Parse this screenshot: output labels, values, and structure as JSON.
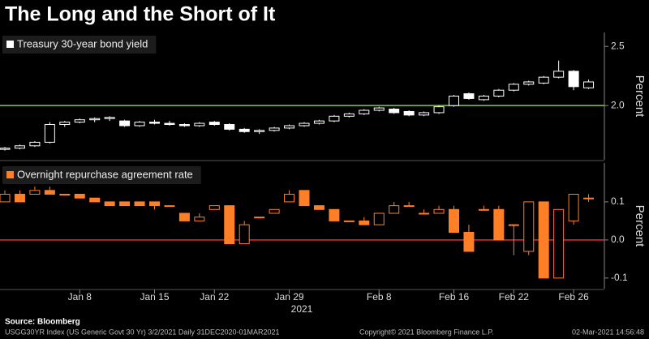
{
  "title": "The Long and the Short of It",
  "source": "Source: Bloomberg",
  "footer_left": "USGG30YR Index (US Generic Govt 30 Yr) 3/2/2021  Daily 31DEC2020-01MAR2021",
  "footer_center": "Copyright© 2021 Bloomberg Finance L.P.",
  "footer_right": "02-Mar-2021 14:56:48",
  "chart_data": [
    {
      "type": "candlestick",
      "legend": "Treasury 30-year bond yield",
      "color": "#ffffff",
      "ylabel": "Percent",
      "ylim": [
        1.542,
        2.618
      ],
      "yticks": [
        {
          "value": 2,
          "label": "2.0"
        },
        2.5
      ],
      "reference_line": 2,
      "reference_color": "#8cc63f",
      "open": [
        1.63,
        1.64,
        1.66,
        1.69,
        1.84,
        1.86,
        1.88,
        1.89,
        1.87,
        1.83,
        1.86,
        1.85,
        1.84,
        1.83,
        1.86,
        1.84,
        1.8,
        1.78,
        1.79,
        1.81,
        1.83,
        1.85,
        1.87,
        1.91,
        1.93,
        1.96,
        1.97,
        1.95,
        1.92,
        1.94,
        2.0,
        2.1,
        2.05,
        2.08,
        2.13,
        2.18,
        2.19,
        2.24,
        2.29,
        2.15
      ],
      "high": [
        1.65,
        1.67,
        1.7,
        1.86,
        1.87,
        1.89,
        1.9,
        1.91,
        1.88,
        1.87,
        1.88,
        1.87,
        1.85,
        1.86,
        1.87,
        1.85,
        1.81,
        1.8,
        1.82,
        1.84,
        1.86,
        1.88,
        1.92,
        1.94,
        1.97,
        1.99,
        1.98,
        1.96,
        1.95,
        2.0,
        2.09,
        2.11,
        2.09,
        2.14,
        2.19,
        2.21,
        2.25,
        2.38,
        2.3,
        2.22
      ],
      "low": [
        1.62,
        1.63,
        1.65,
        1.68,
        1.82,
        1.85,
        1.86,
        1.87,
        1.82,
        1.82,
        1.84,
        1.83,
        1.82,
        1.82,
        1.83,
        1.79,
        1.77,
        1.76,
        1.78,
        1.8,
        1.82,
        1.84,
        1.86,
        1.9,
        1.92,
        1.95,
        1.93,
        1.91,
        1.91,
        1.93,
        1.99,
        2.05,
        2.04,
        2.07,
        2.12,
        2.17,
        2.18,
        2.23,
        2.13,
        2.14
      ],
      "close": [
        1.64,
        1.66,
        1.69,
        1.84,
        1.86,
        1.88,
        1.89,
        1.9,
        1.83,
        1.86,
        1.85,
        1.84,
        1.83,
        1.85,
        1.84,
        1.8,
        1.78,
        1.79,
        1.81,
        1.83,
        1.85,
        1.87,
        1.91,
        1.93,
        1.96,
        1.98,
        1.94,
        1.92,
        1.94,
        1.99,
        2.08,
        2.06,
        2.08,
        2.13,
        2.18,
        2.2,
        2.24,
        2.29,
        2.16,
        2.2
      ]
    },
    {
      "type": "candlestick",
      "legend": "Overnight repurchase agreement rate",
      "color": "#ff7f27",
      "ylabel": "Percent",
      "ylim": [
        -0.128,
        0.202
      ],
      "yticks": [
        -0.1,
        {
          "value": 0,
          "label": "0.0"
        },
        0.1
      ],
      "reference_line": 0,
      "reference_color": "#e03030",
      "xlabel": "2021",
      "categories": [
        null,
        null,
        null,
        null,
        null,
        "Jan 8",
        null,
        null,
        null,
        null,
        "Jan 15",
        null,
        null,
        null,
        "Jan 22",
        null,
        null,
        null,
        null,
        "Jan 29",
        null,
        null,
        null,
        null,
        null,
        "Feb 8",
        null,
        null,
        null,
        null,
        "Feb 16",
        null,
        null,
        null,
        "Feb 22",
        null,
        null,
        null,
        "Feb 26",
        null
      ],
      "open": [
        0.1,
        0.12,
        0.12,
        0.13,
        0.12,
        0.12,
        0.11,
        0.1,
        0.1,
        0.1,
        0.1,
        0.09,
        0.07,
        0.05,
        0.08,
        0.09,
        -0.01,
        0.06,
        0.07,
        0.1,
        0.13,
        0.09,
        0.08,
        0.05,
        0.05,
        0.04,
        0.07,
        0.09,
        0.07,
        0.07,
        0.08,
        0.02,
        0.08,
        0.08,
        0.04,
        -0.03,
        0.1,
        -0.1,
        0.05,
        0.11
      ],
      "high": [
        0.13,
        0.13,
        0.14,
        0.14,
        0.12,
        0.12,
        0.11,
        0.1,
        0.1,
        0.1,
        0.1,
        0.09,
        0.07,
        0.07,
        0.09,
        0.09,
        0.05,
        0.06,
        0.08,
        0.13,
        0.13,
        0.09,
        0.08,
        0.05,
        0.06,
        0.07,
        0.1,
        0.1,
        0.08,
        0.09,
        0.09,
        0.04,
        0.09,
        0.09,
        0.04,
        0.1,
        0.1,
        0.08,
        0.12,
        0.12
      ],
      "low": [
        0.1,
        0.1,
        0.12,
        0.12,
        0.12,
        0.11,
        0.1,
        0.09,
        0.09,
        0.09,
        0.08,
        0.09,
        0.05,
        0.05,
        0.08,
        -0.01,
        -0.01,
        0.06,
        0.07,
        0.1,
        0.09,
        0.08,
        0.05,
        0.05,
        0.04,
        0.04,
        0.07,
        0.09,
        0.07,
        0.07,
        0.02,
        -0.03,
        0.08,
        0.0,
        -0.04,
        -0.04,
        -0.1,
        -0.1,
        0.04,
        0.1
      ],
      "close": [
        0.12,
        0.1,
        0.13,
        0.12,
        0.12,
        0.11,
        0.1,
        0.09,
        0.09,
        0.09,
        0.09,
        0.09,
        0.05,
        0.06,
        0.09,
        -0.01,
        0.04,
        0.06,
        0.08,
        0.12,
        0.09,
        0.08,
        0.05,
        0.05,
        0.04,
        0.07,
        0.09,
        0.09,
        0.07,
        0.08,
        0.02,
        -0.03,
        0.08,
        0.0,
        0.04,
        0.1,
        -0.1,
        0.08,
        0.12,
        0.11
      ]
    }
  ]
}
